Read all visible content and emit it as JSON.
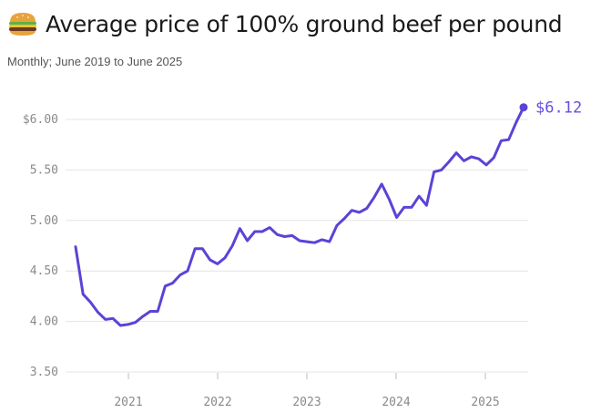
{
  "header": {
    "title": "Average price of 100% ground beef per pound",
    "subtitle": "Monthly; June 2019 to June 2025",
    "icon": "hamburger-icon"
  },
  "colors": {
    "line": "#5b43d6",
    "grid": "#e4e4e4",
    "tick": "#8a8a8a"
  },
  "chart_data": {
    "type": "line",
    "title": "Average price of 100% ground beef per pound",
    "subtitle": "Monthly; June 2019 to June 2025",
    "xlabel": "",
    "ylabel": "",
    "ylim": [
      3.5,
      6.25
    ],
    "yticks": [
      3.5,
      4.0,
      4.5,
      5.0,
      5.5,
      6.0
    ],
    "ytick_labels": [
      "3.50",
      "4.00",
      "4.50",
      "5.00",
      "5.50",
      "$6.00"
    ],
    "xticks": [
      "2021",
      "2022",
      "2023",
      "2024",
      "2025"
    ],
    "grid": true,
    "end_label": "$6.12",
    "series": [
      {
        "values": [
          4.74,
          4.27,
          4.19,
          4.09,
          4.02,
          4.03,
          3.96,
          3.97,
          3.99,
          4.05,
          4.1,
          4.1,
          4.35,
          4.38,
          4.46,
          4.5,
          4.72,
          4.72,
          4.61,
          4.57,
          4.63,
          4.75,
          4.92,
          4.8,
          4.89,
          4.89,
          4.93,
          4.86,
          4.84,
          4.85,
          4.8,
          4.79,
          4.78,
          4.81,
          4.79,
          4.95,
          5.02,
          5.1,
          5.08,
          5.12,
          5.23,
          5.36,
          5.21,
          5.03,
          5.13,
          5.13,
          5.24,
          5.15,
          5.48,
          5.5,
          5.58,
          5.67,
          5.59,
          5.63,
          5.61,
          5.55,
          5.62,
          5.79,
          5.8,
          5.97,
          6.12
        ]
      }
    ]
  }
}
